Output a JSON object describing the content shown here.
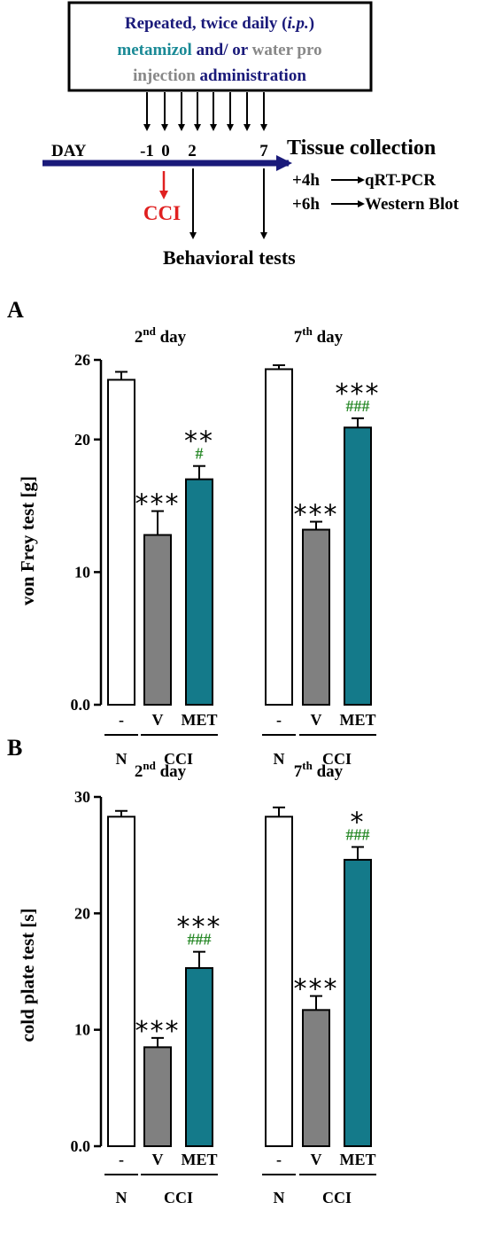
{
  "schema": {
    "box": {
      "lines": [
        [
          {
            "text": "Repeated, twice daily (",
            "color": "#1a1a7a",
            "italic": false
          },
          {
            "text": "i.p.",
            "color": "#1a1a7a",
            "italic": true
          },
          {
            "text": ")",
            "color": "#1a1a7a",
            "italic": false
          }
        ],
        [
          {
            "text": "metamizol",
            "color": "#1a8a96",
            "italic": false
          },
          {
            "text": " and/ or ",
            "color": "#1a1a7a",
            "italic": false
          },
          {
            "text": "water pro",
            "color": "#888888",
            "italic": false
          }
        ],
        [
          {
            "text": "injection ",
            "color": "#888888",
            "italic": false
          },
          {
            "text": "administration",
            "color": "#1a1a7a",
            "italic": false
          }
        ]
      ]
    },
    "day_label": "DAY",
    "day_ticks": [
      "-1",
      "0",
      "2",
      "7"
    ],
    "cci_label": "CCI",
    "tissue_collection": "Tissue collection",
    "follow_ups": [
      {
        "offset": "+4h",
        "assay": "qRT-PCR"
      },
      {
        "offset": "+6h",
        "assay": "Western Blot"
      }
    ],
    "behavioral_tests": "Behavioral tests",
    "colors": {
      "arrow": "#1a1a7a",
      "cci": "#e02020"
    }
  },
  "chart_data": [
    {
      "type": "bar",
      "panel_label": "A",
      "ylabel": "von Frey test [g]",
      "yticks": [
        "0.0",
        "10",
        "20",
        "26"
      ],
      "ylim": [
        0,
        26
      ],
      "groups": [
        {
          "title_base": "2",
          "title_sup": "nd",
          "title_rest": " day",
          "bars": [
            {
              "category": "-",
              "value": 24.5,
              "error": 0.6,
              "stars": "",
              "hashes": "",
              "color": "#ffffff"
            },
            {
              "category": "V",
              "value": 12.8,
              "error": 1.8,
              "stars": "***",
              "hashes": "",
              "color": "#808080"
            },
            {
              "category": "MET",
              "value": 17.0,
              "error": 1.0,
              "stars": "**",
              "hashes": "#",
              "color": "#147a8a"
            }
          ],
          "group_labels": [
            "N",
            "CCI"
          ]
        },
        {
          "title_base": "7",
          "title_sup": "th",
          "title_rest": " day",
          "bars": [
            {
              "category": "-",
              "value": 25.3,
              "error": 0.3,
              "stars": "",
              "hashes": "",
              "color": "#ffffff"
            },
            {
              "category": "V",
              "value": 13.2,
              "error": 0.6,
              "stars": "***",
              "hashes": "",
              "color": "#808080"
            },
            {
              "category": "MET",
              "value": 20.9,
              "error": 0.7,
              "stars": "***",
              "hashes": "###",
              "color": "#147a8a"
            }
          ],
          "group_labels": [
            "N",
            "CCI"
          ]
        }
      ]
    },
    {
      "type": "bar",
      "panel_label": "B",
      "ylabel": "cold plate test [s]",
      "yticks": [
        "0.0",
        "10",
        "20",
        "30"
      ],
      "ylim": [
        0,
        30
      ],
      "groups": [
        {
          "title_base": "2",
          "title_sup": "nd",
          "title_rest": " day",
          "bars": [
            {
              "category": "-",
              "value": 28.3,
              "error": 0.5,
              "stars": "",
              "hashes": "",
              "color": "#ffffff"
            },
            {
              "category": "V",
              "value": 8.5,
              "error": 0.8,
              "stars": "***",
              "hashes": "",
              "color": "#808080"
            },
            {
              "category": "MET",
              "value": 15.3,
              "error": 1.4,
              "stars": "***",
              "hashes": "###",
              "color": "#147a8a"
            }
          ],
          "group_labels": [
            "N",
            "CCI"
          ]
        },
        {
          "title_base": "7",
          "title_sup": "th",
          "title_rest": " day",
          "bars": [
            {
              "category": "-",
              "value": 28.3,
              "error": 0.8,
              "stars": "",
              "hashes": "",
              "color": "#ffffff"
            },
            {
              "category": "V",
              "value": 11.7,
              "error": 1.2,
              "stars": "***",
              "hashes": "",
              "color": "#808080"
            },
            {
              "category": "MET",
              "value": 24.6,
              "error": 1.1,
              "stars": "*",
              "hashes": "###",
              "color": "#147a8a"
            }
          ],
          "group_labels": [
            "N",
            "CCI"
          ]
        }
      ]
    }
  ],
  "hash_color": "#2a8a2a"
}
